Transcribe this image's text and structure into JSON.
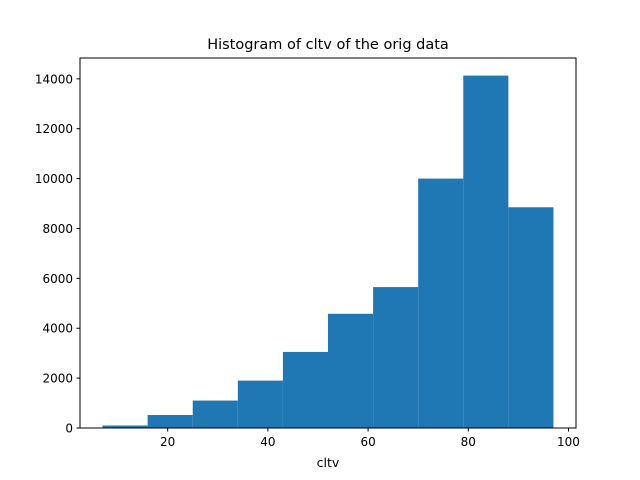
{
  "chart_data": {
    "type": "bar",
    "title": "Histogram of cltv of the orig data",
    "xlabel": "cltv",
    "ylabel": "",
    "bar_color": "#1f77b4",
    "bins": [
      {
        "x0": 7,
        "x1": 16,
        "count": 100
      },
      {
        "x0": 16,
        "x1": 25,
        "count": 520
      },
      {
        "x0": 25,
        "x1": 34,
        "count": 1100
      },
      {
        "x0": 34,
        "x1": 43,
        "count": 1900
      },
      {
        "x0": 43,
        "x1": 52,
        "count": 3050
      },
      {
        "x0": 52,
        "x1": 61,
        "count": 4580
      },
      {
        "x0": 61,
        "x1": 70,
        "count": 5650
      },
      {
        "x0": 70,
        "x1": 79,
        "count": 10000
      },
      {
        "x0": 79,
        "x1": 88,
        "count": 14130
      },
      {
        "x0": 88,
        "x1": 97,
        "count": 8850
      }
    ],
    "xlim": [
      2.5,
      101.5
    ],
    "ylim": [
      0,
      14836
    ],
    "xticks": [
      20,
      40,
      60,
      80,
      100
    ],
    "yticks": [
      0,
      2000,
      4000,
      6000,
      8000,
      10000,
      12000,
      14000
    ],
    "grid": false
  }
}
